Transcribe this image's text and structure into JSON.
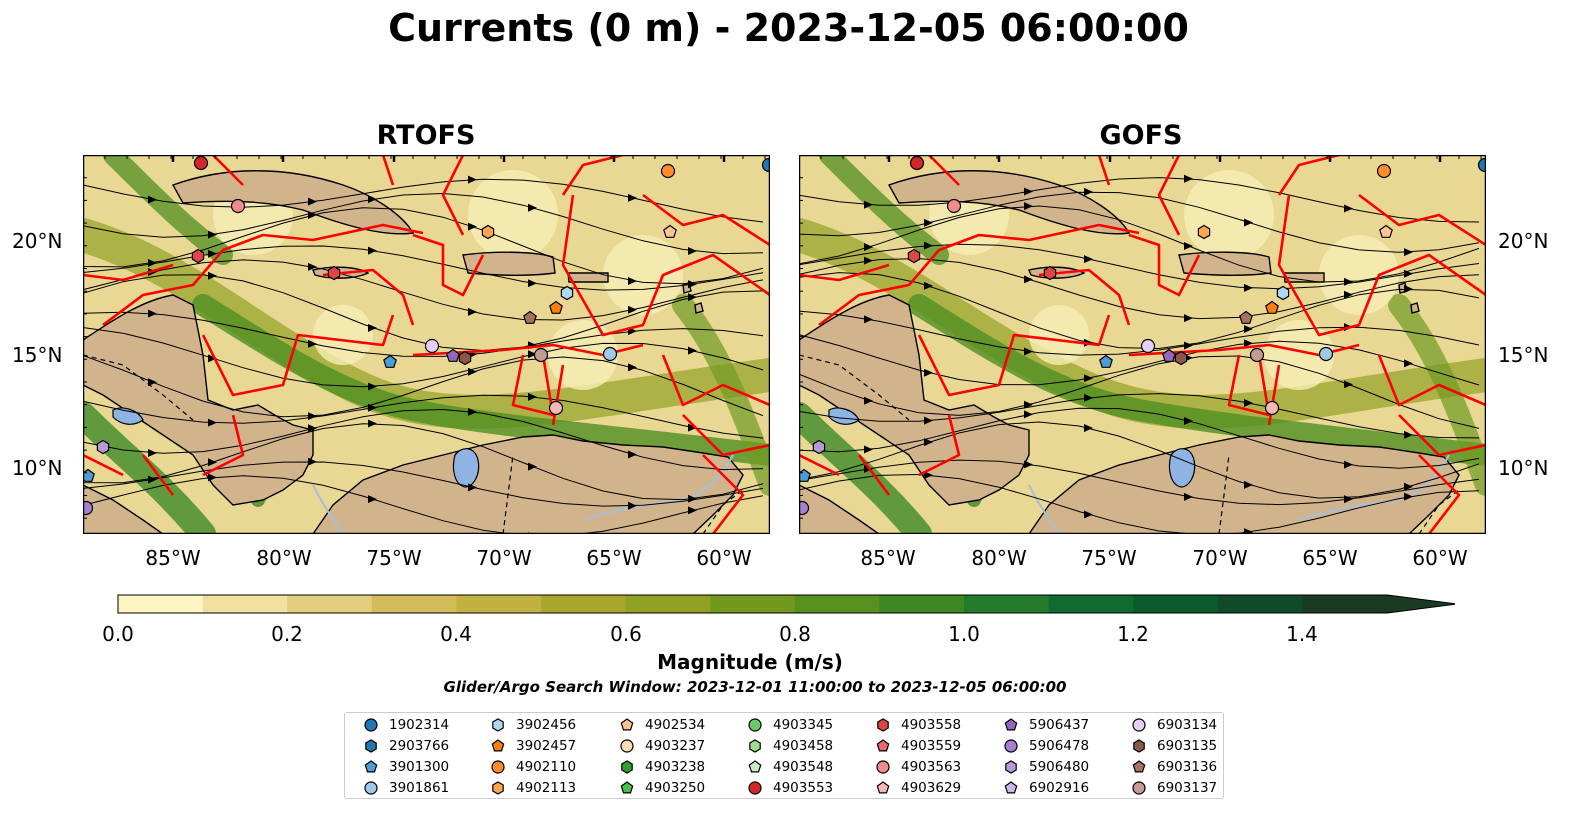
{
  "title": "Currents (0 m) - 2023-12-05 06:00:00",
  "panels": [
    {
      "title": "RTOFS"
    },
    {
      "title": "GOFS"
    }
  ],
  "lat_labels": [
    "20°N",
    "15°N",
    "10°N"
  ],
  "lon_labels": [
    "85°W",
    "80°W",
    "75°W",
    "70°W",
    "65°W",
    "60°W"
  ],
  "colorbar": {
    "label": "Magnitude (m/s)",
    "ticks": [
      "0.0",
      "0.2",
      "0.4",
      "0.6",
      "0.8",
      "1.0",
      "1.2",
      "1.4"
    ],
    "min": 0.0,
    "max": 1.5,
    "extend": "max",
    "colors": [
      "#fdf6c3",
      "#f0e1a0",
      "#e2ce7c",
      "#d4bc5a",
      "#c2b040",
      "#a9a62e",
      "#8fa022",
      "#73981e",
      "#56901f",
      "#3e8624",
      "#237a2a",
      "#0f6b30",
      "#0a5a2c",
      "#104a28",
      "#1b3a22"
    ]
  },
  "search_window": "Glider/Argo Search Window: 2023-12-01 11:00:00 to 2023-12-05 06:00:00",
  "legend": [
    {
      "label": "1902314",
      "color": "#1f77b4",
      "marker": "circle"
    },
    {
      "label": "2903766",
      "color": "#1f77b4",
      "marker": "hexagon"
    },
    {
      "label": "3901300",
      "color": "#4e9bd6",
      "marker": "pentagon"
    },
    {
      "label": "3901861",
      "color": "#9ecae8",
      "marker": "circle"
    },
    {
      "label": "3902456",
      "color": "#aed8f0",
      "marker": "hexagon"
    },
    {
      "label": "3902457",
      "color": "#ff7f0e",
      "marker": "pentagon"
    },
    {
      "label": "4902110",
      "color": "#ff8c2a",
      "marker": "circle"
    },
    {
      "label": "4902113",
      "color": "#ffa54f",
      "marker": "hexagon"
    },
    {
      "label": "4902534",
      "color": "#ffc490",
      "marker": "pentagon"
    },
    {
      "label": "4903237",
      "color": "#ffdcb8",
      "marker": "circle"
    },
    {
      "label": "4903238",
      "color": "#2ca02c",
      "marker": "hexagon"
    },
    {
      "label": "4903250",
      "color": "#4cbe4c",
      "marker": "pentagon"
    },
    {
      "label": "4903345",
      "color": "#6cc96c",
      "marker": "circle"
    },
    {
      "label": "4903458",
      "color": "#98df8a",
      "marker": "hexagon"
    },
    {
      "label": "4903548",
      "color": "#c6f0c0",
      "marker": "pentagon"
    },
    {
      "label": "4903553",
      "color": "#d62728",
      "marker": "circle"
    },
    {
      "label": "4903558",
      "color": "#e04546",
      "marker": "hexagon"
    },
    {
      "label": "4903559",
      "color": "#ea6a6a",
      "marker": "pentagon"
    },
    {
      "label": "4903563",
      "color": "#f08c8c",
      "marker": "circle"
    },
    {
      "label": "4903629",
      "color": "#f8b8b8",
      "marker": "pentagon"
    },
    {
      "label": "5906437",
      "color": "#9467bd",
      "marker": "pentagon"
    },
    {
      "label": "5906478",
      "color": "#a67fd0",
      "marker": "circle"
    },
    {
      "label": "5906480",
      "color": "#b79ad8",
      "marker": "hexagon"
    },
    {
      "label": "6902916",
      "color": "#cdb6ee",
      "marker": "pentagon"
    },
    {
      "label": "6903134",
      "color": "#e6d0f8",
      "marker": "circle"
    },
    {
      "label": "6903135",
      "color": "#8c564b",
      "marker": "hexagon"
    },
    {
      "label": "6903136",
      "color": "#a8705e",
      "marker": "pentagon"
    },
    {
      "label": "6903137",
      "color": "#c49c94",
      "marker": "circle"
    }
  ]
}
